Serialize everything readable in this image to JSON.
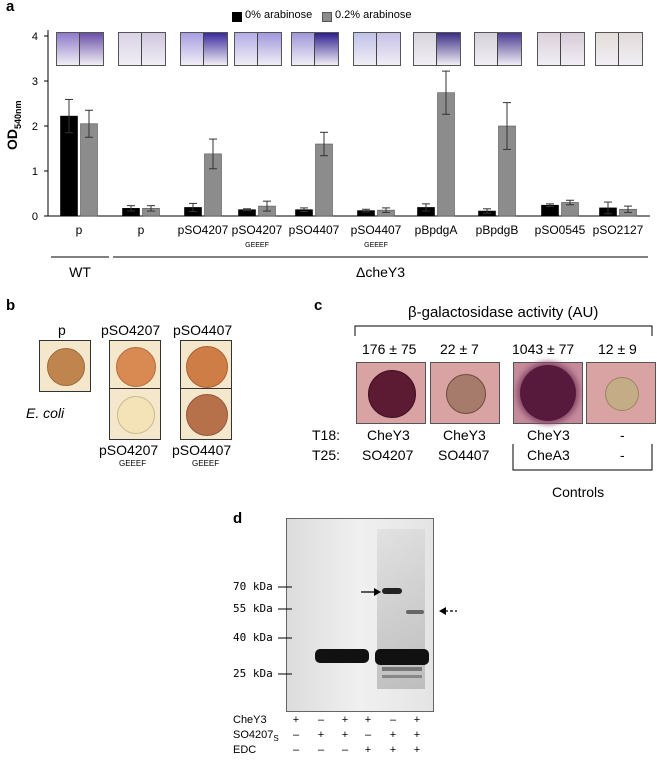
{
  "panels": {
    "a": "a",
    "b": "b",
    "c": "c",
    "d": "d"
  },
  "chart_data": {
    "type": "bar",
    "ylabel": "OD",
    "ylabel_sub": "540nm",
    "ylim": [
      0,
      4
    ],
    "yticks": [
      "0",
      "1",
      "2",
      "3",
      "4"
    ],
    "categories": [
      "p",
      "p",
      "pSO4207",
      "pSO4207",
      "pSO4407",
      "pSO4407",
      "pBpdgA",
      "pBpdgB",
      "pSO0545",
      "pSO2127"
    ],
    "category_sublabels": [
      "",
      "",
      "",
      "GEEEF",
      "",
      "GEEEF",
      "",
      "",
      "",
      ""
    ],
    "series": [
      {
        "name": "0% arabinose",
        "color": "#000000",
        "values": [
          2.22,
          0.17,
          0.19,
          0.14,
          0.14,
          0.12,
          0.19,
          0.11,
          0.24,
          0.18
        ],
        "errors": [
          0.37,
          0.06,
          0.09,
          0.02,
          0.04,
          0.03,
          0.08,
          0.05,
          0.03,
          0.13
        ]
      },
      {
        "name": "0.2% arabinose",
        "color": "#8c8c8c",
        "values": [
          2.05,
          0.17,
          1.38,
          0.22,
          1.6,
          0.13,
          2.74,
          2.0,
          0.3,
          0.15
        ],
        "errors": [
          0.3,
          0.06,
          0.33,
          0.11,
          0.26,
          0.05,
          0.48,
          0.52,
          0.05,
          0.07
        ]
      }
    ],
    "groups": [
      {
        "label": "WT",
        "from": 0,
        "to": 0
      },
      {
        "label": "ΔcheY3",
        "from": 1,
        "to": 9
      }
    ]
  },
  "panel_b": {
    "top_labels": [
      "p",
      "pSO4207",
      "pSO4407"
    ],
    "side_label": "E. coli",
    "bottom_labels": [
      "pSO4207",
      "pSO4407"
    ],
    "bottom_sublabels": [
      "GEEEF",
      "GEEEF"
    ]
  },
  "panel_c": {
    "title": "β-galactosidase activity (AU)",
    "values": [
      "176 ± 75",
      "22 ± 7",
      "1043 ± 77",
      "12 ± 9"
    ],
    "row_t18_label": "T18:",
    "row_t25_label": "T25:",
    "t18": [
      "CheY3",
      "CheY3",
      "CheY3",
      "-"
    ],
    "t25": [
      "SO4207",
      "SO4407",
      "CheA3",
      "-"
    ],
    "controls_label": "Controls"
  },
  "panel_d": {
    "markers": [
      "70 kDa",
      "55 kDa",
      "40 kDa",
      "25 kDa"
    ],
    "rows": [
      {
        "label": "CheY3",
        "sub": "",
        "signs": [
          "+",
          "–",
          "+",
          "+",
          "–",
          "+"
        ]
      },
      {
        "label": "SO4207",
        "sub": "S",
        "signs": [
          "–",
          "+",
          "+",
          "–",
          "+",
          "+"
        ]
      },
      {
        "label": "EDC",
        "sub": "",
        "signs": [
          "–",
          "–",
          "–",
          "+",
          "+",
          "+"
        ]
      }
    ]
  }
}
